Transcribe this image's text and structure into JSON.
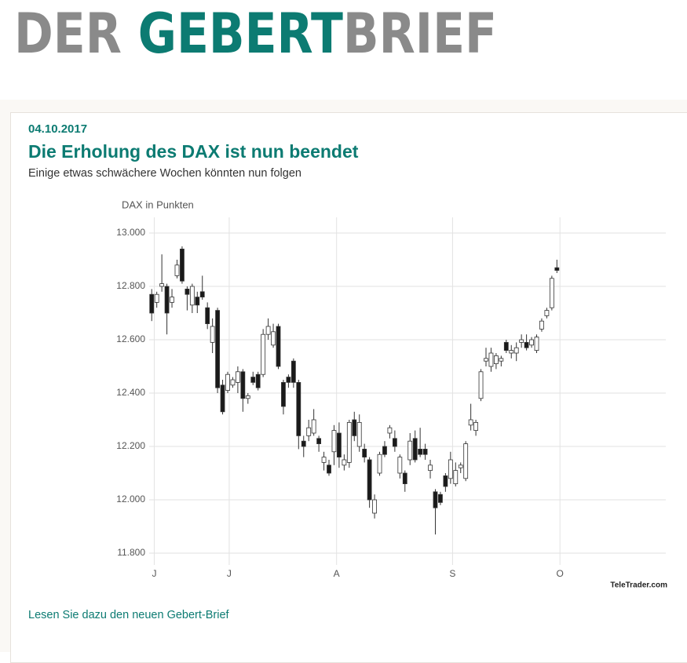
{
  "header": {
    "logo": [
      "DER ",
      "GEBERT",
      "BRIEF"
    ]
  },
  "article": {
    "date": "04.10.2017",
    "title": "Die Erholung des DAX ist nun beendet",
    "subtitle": "Einige etwas schwächere Wochen könnten nun folgen",
    "link": "Lesen Sie dazu den neuen Gebert-Brief"
  },
  "chart_data": {
    "type": "candlestick",
    "ylabel": "DAX in Punkten",
    "source": "TeleTrader.com",
    "categories": [
      null,
      null,
      null,
      null,
      null,
      null,
      null,
      null,
      null,
      null,
      null,
      null,
      null,
      null,
      null,
      null,
      null,
      null,
      null,
      null,
      null,
      null,
      null,
      null,
      null,
      null,
      null,
      null,
      null,
      null,
      null,
      null,
      null,
      null,
      null,
      null,
      null,
      null,
      null,
      null,
      null,
      null,
      null,
      null,
      null,
      null,
      null,
      null,
      null,
      null,
      null,
      null,
      null,
      null,
      null,
      null,
      null,
      null,
      null,
      null,
      null,
      null,
      null,
      null,
      null,
      null,
      null,
      null,
      null,
      null,
      null,
      null,
      null,
      null,
      null,
      null,
      null,
      null,
      null,
      null,
      null
    ],
    "open": [
      12770,
      12740,
      12800,
      12800,
      12740,
      12840,
      12940,
      12790,
      12730,
      12760,
      12780,
      12720,
      12590,
      12710,
      12430,
      12410,
      12430,
      12440,
      12480,
      12380,
      12460,
      12470,
      12470,
      12620,
      12580,
      12650,
      12440,
      12460,
      12520,
      12440,
      12220,
      12240,
      12250,
      12230,
      12140,
      12130,
      12180,
      12250,
      12130,
      12140,
      12300,
      12200,
      12190,
      12150,
      11950,
      12100,
      12200,
      12250,
      12230,
      12100,
      12100,
      12150,
      12230,
      12190,
      12190,
      12110,
      12030,
      12020,
      12090,
      12080,
      12060,
      12120,
      12080,
      12280,
      12260,
      12380,
      12520,
      12500,
      12510,
      12520,
      12590,
      12550,
      12550,
      12590,
      12590,
      12580,
      12560,
      12640,
      12690,
      12720,
      12870
    ],
    "high": [
      12790,
      12780,
      12920,
      12810,
      12790,
      12900,
      12950,
      12800,
      12810,
      12780,
      12840,
      12740,
      12680,
      12720,
      12450,
      12480,
      12460,
      12500,
      12490,
      12400,
      12480,
      12480,
      12640,
      12680,
      12660,
      12660,
      12450,
      12470,
      12530,
      12450,
      12240,
      12300,
      12340,
      12240,
      12180,
      12150,
      12280,
      12290,
      12170,
      12300,
      12330,
      12320,
      12210,
      12160,
      12020,
      12180,
      12220,
      12280,
      12260,
      12170,
      12110,
      12250,
      12260,
      12270,
      12210,
      12150,
      12040,
      12030,
      12100,
      12180,
      12140,
      12140,
      12220,
      12360,
      12300,
      12490,
      12570,
      12570,
      12550,
      12540,
      12600,
      12580,
      12590,
      12620,
      12620,
      12610,
      12620,
      12680,
      12720,
      12840,
      12900
    ],
    "low": [
      12670,
      12720,
      12780,
      12620,
      12720,
      12830,
      12810,
      12710,
      12700,
      12700,
      12750,
      12640,
      12550,
      12400,
      12320,
      12400,
      12420,
      12400,
      12330,
      12360,
      12430,
      12410,
      12460,
      12600,
      12570,
      12490,
      12320,
      12420,
      12420,
      12190,
      12160,
      12220,
      12240,
      12180,
      12110,
      12090,
      12130,
      12120,
      12110,
      12120,
      12220,
      12180,
      12140,
      11970,
      11930,
      12090,
      12160,
      12230,
      12180,
      12080,
      12030,
      12130,
      12140,
      12160,
      12150,
      12080,
      11870,
      11980,
      12030,
      12060,
      12050,
      12100,
      12070,
      12260,
      12240,
      12370,
      12500,
      12480,
      12490,
      12500,
      12550,
      12530,
      12520,
      12570,
      12560,
      12570,
      12550,
      12630,
      12680,
      12710,
      12850
    ],
    "close": [
      12700,
      12770,
      12810,
      12700,
      12760,
      12880,
      12820,
      12770,
      12800,
      12730,
      12760,
      12660,
      12650,
      12420,
      12330,
      12470,
      12450,
      12480,
      12380,
      12390,
      12440,
      12420,
      12620,
      12650,
      12630,
      12500,
      12350,
      12440,
      12440,
      12240,
      12200,
      12270,
      12300,
      12210,
      12160,
      12100,
      12260,
      12160,
      12150,
      12290,
      12240,
      12290,
      12160,
      12000,
      12000,
      12170,
      12170,
      12270,
      12200,
      12160,
      12060,
      12220,
      12150,
      12170,
      12170,
      12130,
      11970,
      11990,
      12050,
      12150,
      12110,
      12130,
      12210,
      12300,
      12290,
      12480,
      12530,
      12550,
      12540,
      12530,
      12560,
      12560,
      12570,
      12600,
      12570,
      12600,
      12610,
      12670,
      12710,
      12830,
      12860
    ],
    "up_color": "#ffffff",
    "down_color": "#1a1a1a",
    "edge_color": "#333333",
    "xlim": [
      -0.5,
      101.5
    ],
    "xticks": [
      {
        "value": 0.5,
        "label": "J"
      },
      {
        "value": 15.3,
        "label": "J"
      },
      {
        "value": 36.5,
        "label": "A"
      },
      {
        "value": 59.4,
        "label": "S"
      },
      {
        "value": 80.6,
        "label": "O"
      }
    ],
    "ylim": [
      11800,
      13000
    ],
    "yticks": [
      {
        "value": 11800,
        "label": "11.800"
      },
      {
        "value": 12000,
        "label": "12.000"
      },
      {
        "value": 12200,
        "label": "12.200"
      },
      {
        "value": 12400,
        "label": "12.400"
      },
      {
        "value": 12600,
        "label": "12.600"
      },
      {
        "value": 12800,
        "label": "12.800"
      },
      {
        "value": 13000,
        "label": "13.000"
      }
    ],
    "grid": true
  }
}
